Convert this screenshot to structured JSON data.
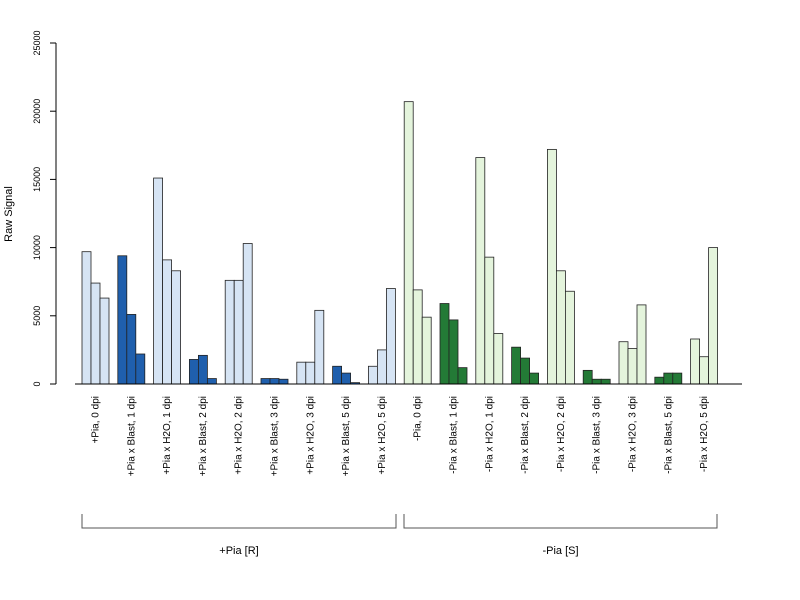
{
  "chart_data": {
    "type": "bar",
    "ylabel": "Raw Signal",
    "ylim": [
      0,
      25000
    ],
    "yticks": [
      0,
      5000,
      10000,
      15000,
      20000,
      25000
    ],
    "categories": [
      "+Pia, 0 dpi",
      "+Pia x Blast, 1 dpi",
      "+Pia x H2O, 1 dpi",
      "+Pia x Blast, 2 dpi",
      "+Pia x H2O, 2 dpi",
      "+Pia x Blast, 3 dpi",
      "+Pia x H2O, 3 dpi",
      "+Pia x Blast, 5 dpi",
      "+Pia x H2O, 5 dpi",
      "-Pia, 0 dpi",
      "-Pia x Blast, 1 dpi",
      "-Pia x H2O, 1 dpi",
      "-Pia x Blast, 2 dpi",
      "-Pia x H2O, 2 dpi",
      "-Pia x Blast, 3 dpi",
      "-Pia x H2O, 3 dpi",
      "-Pia x Blast, 5 dpi",
      "-Pia x H2O, 5 dpi"
    ],
    "values": [
      [
        9700,
        7400,
        6300
      ],
      [
        9400,
        5100,
        2200
      ],
      [
        15100,
        9100,
        8300
      ],
      [
        1800,
        2100,
        400
      ],
      [
        7600,
        7600,
        10300
      ],
      [
        400,
        400,
        350
      ],
      [
        1600,
        1600,
        5400
      ],
      [
        1300,
        800,
        100
      ],
      [
        1300,
        2500,
        7000
      ],
      [
        20700,
        6900,
        4900
      ],
      [
        5900,
        4700,
        1200
      ],
      [
        16600,
        9300,
        3700
      ],
      [
        2700,
        1900,
        800
      ],
      [
        17200,
        8300,
        6800
      ],
      [
        1000,
        350,
        350
      ],
      [
        3100,
        2600,
        5800
      ],
      [
        500,
        800,
        800
      ],
      [
        3300,
        2000,
        10000
      ]
    ],
    "fill_colors": [
      "#d6e4f4",
      "#1f5fad",
      "#d6e4f4",
      "#1f5fad",
      "#d6e4f4",
      "#1f5fad",
      "#d6e4f4",
      "#1f5fad",
      "#d6e4f4",
      "#e4f4dc",
      "#237a36",
      "#e4f4dc",
      "#237a36",
      "#e4f4dc",
      "#237a36",
      "#e4f4dc",
      "#237a36",
      "#e4f4dc"
    ],
    "groups": [
      {
        "label": "+Pia [R]",
        "from": 0,
        "to": 8
      },
      {
        "label": "-Pia [S]",
        "from": 9,
        "to": 17
      }
    ],
    "grid": false,
    "legend": "none"
  }
}
